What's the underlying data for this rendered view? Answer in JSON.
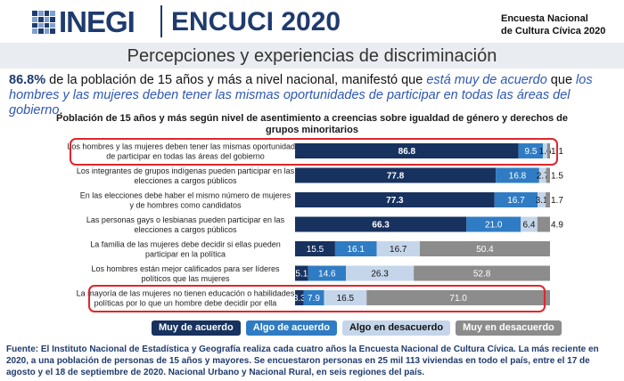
{
  "header": {
    "logo": "INEGI",
    "survey": "ENCUCI 2020",
    "subtitle_line1": "Encuesta Nacional",
    "subtitle_line2": "de Cultura Cívica 2020"
  },
  "page_title": "Percepciones y experiencias de discriminación",
  "headline": {
    "percent": "86.8%",
    "text1": " de la población de 15 años y más a nivel nacional, manifestó que ",
    "emph1": "está muy de acuerdo",
    "text2": " que ",
    "emph2": "los hombres y las mujeres deben tener las mismas oportunidades de participar en todas las áreas del gobierno",
    "text3": "."
  },
  "chart_data": {
    "type": "bar",
    "orientation": "horizontal",
    "stacked": true,
    "title": "Población de 15 años y más según nivel de asentimiento a creencias sobre igualdad de género y derechos de grupos minoritarios",
    "categories": [
      [
        "Los hombres y las mujeres deben tener las mismas oportunidades",
        "de participar en todas las áreas del gobierno"
      ],
      [
        "Los integrantes de grupos indígenas pueden participar en las",
        "elecciones a cargos públicos"
      ],
      [
        "En las elecciones debe haber el mismo número de mujeres",
        "y de hombres como candidatos"
      ],
      [
        "Las personas gays o lesbianas pueden participar en las",
        "elecciones a cargos públicos"
      ],
      [
        "La familia de las mujeres debe decidir si ellas pueden",
        "participar en la política"
      ],
      [
        "Los hombres están mejor calificados para ser líderes",
        "políticos que las mujeres"
      ],
      [
        "La mayoría de las mujeres no tienen educación o habilidades",
        "políticas por lo que un hombre debe decidir por ella"
      ]
    ],
    "series": [
      {
        "name": "Muy de acuerdo",
        "color": "#17325f",
        "text_color": "#ffffff",
        "values": [
          86.8,
          77.8,
          77.3,
          66.3,
          15.5,
          5.1,
          3.3
        ]
      },
      {
        "name": "Algo de acuerdo",
        "color": "#2f7cc4",
        "text_color": "#ffffff",
        "values": [
          9.5,
          16.8,
          16.7,
          21.0,
          16.1,
          14.6,
          7.9
        ]
      },
      {
        "name": "Algo en desacuerdo",
        "color": "#c5d6ea",
        "text_color": "#111111",
        "values": [
          1.6,
          2.7,
          3.1,
          6.4,
          16.7,
          26.3,
          16.5
        ]
      },
      {
        "name": "Muy en desacuerdo",
        "color": "#8c8c8c",
        "text_color": "#ffffff",
        "values": [
          1.1,
          1.5,
          1.7,
          4.9,
          50.4,
          52.8,
          71.0
        ]
      }
    ],
    "value_labels": [
      [
        "86.8",
        "9.5",
        "1.6",
        "1.1"
      ],
      [
        "77.8",
        "16.8",
        "2.7",
        "1.5"
      ],
      [
        "77.3",
        "16.7",
        "3.1",
        "1.7"
      ],
      [
        "66.3",
        "21.0",
        "6.4",
        "4.9"
      ],
      [
        "15.5",
        "16.1",
        "16.7",
        "50.4"
      ],
      [
        "5.1",
        "14.6",
        "26.3",
        "52.8"
      ],
      [
        "3.3",
        "7.9",
        "16.5",
        "71.0"
      ]
    ],
    "highlighted_categories": [
      0,
      6
    ],
    "xlim": [
      0,
      100
    ],
    "unit": "%",
    "legend_position": "bottom"
  },
  "footer": "Fuente: El Instituto Nacional de Estadística y Geografía realiza cada cuatro años la Encuesta Nacional de Cultura Cívica. La más reciente en 2020, a una población de personas de 15 años y mayores. Se encuestaron personas en 25 mil 113 viviendas en todo el país, entre el 17 de agosto y el 18 de septiembre de 2020. Nacional Urbano y Nacional Rural, en seis regiones del país."
}
